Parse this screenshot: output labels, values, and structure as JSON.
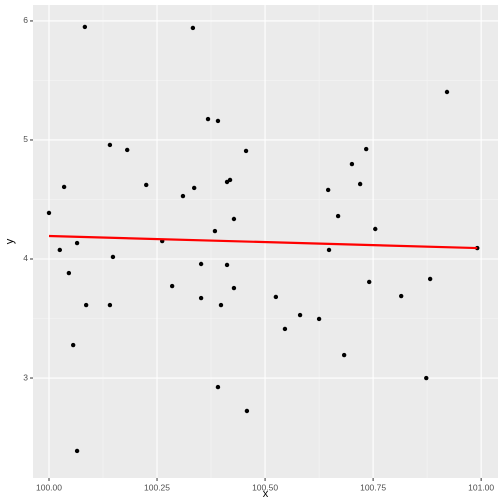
{
  "chart_data": {
    "type": "scatter",
    "x_label": "x",
    "y_label": "y",
    "x": [
      100.0,
      100.025,
      100.035,
      100.046,
      100.056,
      100.065,
      100.065,
      100.083,
      100.086,
      100.141,
      100.141,
      100.148,
      100.181,
      100.225,
      100.262,
      100.285,
      100.31,
      100.333,
      100.336,
      100.352,
      100.352,
      100.368,
      100.384,
      100.391,
      100.391,
      100.398,
      100.412,
      100.412,
      100.419,
      100.428,
      100.428,
      100.456,
      100.458,
      100.525,
      100.546,
      100.581,
      100.625,
      100.646,
      100.648,
      100.669,
      100.683,
      100.701,
      100.72,
      100.734,
      100.741,
      100.755,
      100.815,
      100.873,
      100.882,
      100.921,
      100.991
    ],
    "y": [
      4.387,
      4.076,
      4.605,
      3.882,
      3.277,
      4.134,
      2.387,
      5.95,
      3.613,
      4.958,
      3.613,
      4.017,
      4.916,
      4.622,
      4.151,
      3.773,
      4.529,
      5.941,
      4.597,
      3.958,
      3.672,
      5.176,
      4.235,
      5.16,
      2.924,
      3.613,
      4.647,
      3.95,
      4.664,
      4.336,
      3.756,
      4.908,
      2.723,
      3.681,
      3.412,
      3.529,
      3.496,
      4.58,
      4.076,
      4.361,
      3.193,
      4.798,
      4.63,
      4.924,
      3.807,
      4.252,
      3.689,
      3.0,
      3.832,
      5.403,
      4.092
    ],
    "color": "#000000",
    "fit": {
      "x": [
        100.0,
        100.991
      ],
      "y": [
        4.193,
        4.092
      ],
      "color": "#ff0000"
    },
    "xlim": [
      99.963,
      101.039
    ],
    "ylim": [
      2.16,
      6.134
    ],
    "xticks": [
      {
        "value": 100,
        "label": "100.00"
      },
      100.25,
      {
        "value": 100.5,
        "label": "100.50"
      },
      100.75,
      {
        "value": 101,
        "label": "101.00"
      }
    ],
    "yticks": [
      3,
      4,
      5,
      6
    ],
    "grid": true
  }
}
